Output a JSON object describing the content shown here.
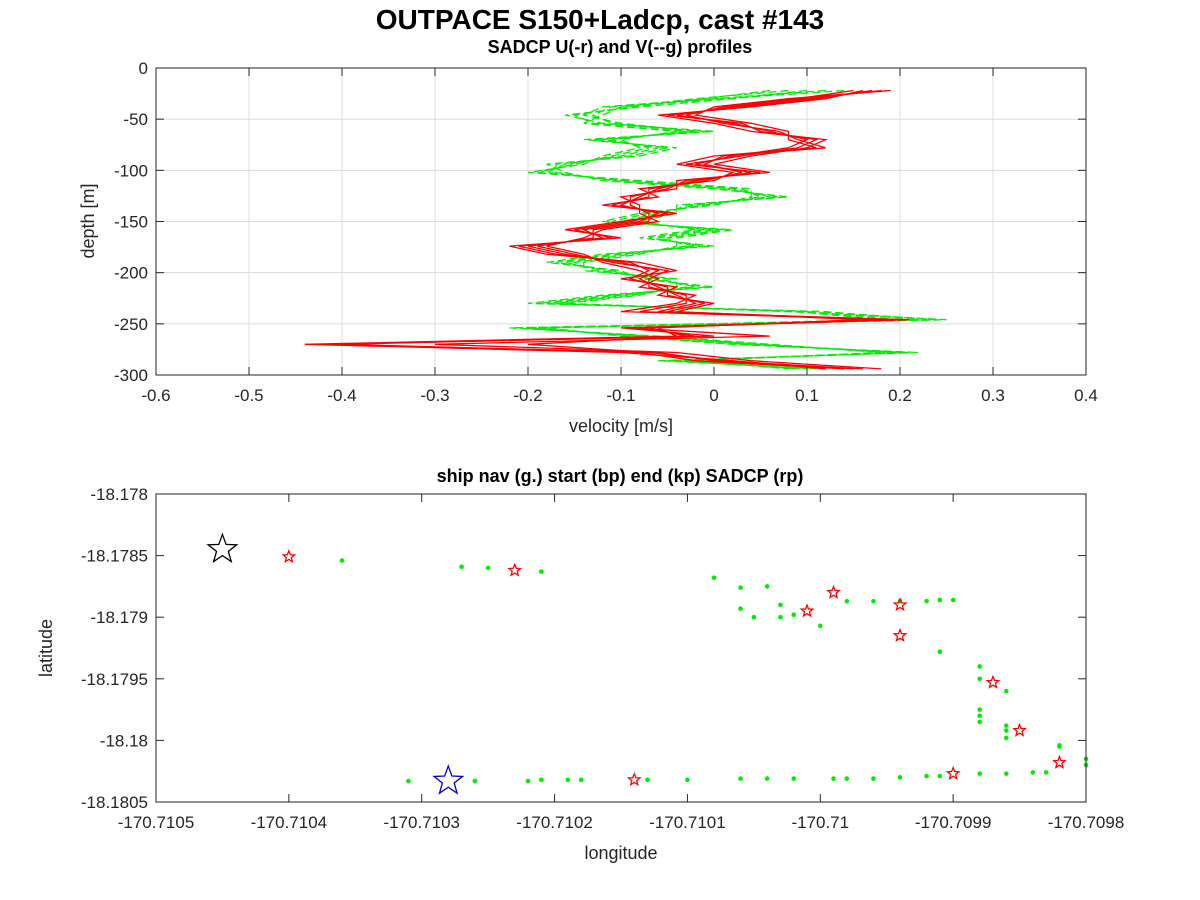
{
  "figure": {
    "title": "OUTPACE S150+Ladcp, cast #143"
  },
  "chart_data": [
    {
      "type": "line",
      "title": "SADCP U(-r) and V(--g) profiles",
      "xlabel": "velocity [m/s]",
      "ylabel": "depth [m]",
      "xlim": [
        -0.6,
        0.4
      ],
      "ylim": [
        -300,
        0
      ],
      "xticks": [
        -0.6,
        -0.5,
        -0.4,
        -0.3,
        -0.2,
        -0.1,
        0,
        0.1,
        0.2,
        0.3,
        0.4
      ],
      "xtick_labels": [
        "-0.6",
        "-0.5",
        "-0.4",
        "-0.3",
        "-0.2",
        "-0.1",
        "0",
        "0.1",
        "0.2",
        "0.3",
        "0.4"
      ],
      "yticks": [
        0,
        -50,
        -100,
        -150,
        -200,
        -250,
        -300
      ],
      "ytick_labels": [
        "0",
        "-50",
        "-100",
        "-150",
        "-200",
        "-250",
        "-300"
      ],
      "grid": true,
      "depth": [
        -22,
        -30,
        -38,
        -46,
        -54,
        -62,
        -70,
        -78,
        -86,
        -94,
        -102,
        -110,
        -118,
        -126,
        -134,
        -142,
        -150,
        -158,
        -166,
        -174,
        -182,
        -190,
        -198,
        -206,
        -214,
        -222,
        -230,
        -238,
        -246,
        -254,
        -262,
        -270,
        -278,
        -286,
        -294
      ],
      "series": [
        {
          "style": "solid",
          "color": "#ff0000",
          "values": [
            0.18,
            0.1,
            0.02,
            -0.04,
            0.02,
            0.06,
            0.1,
            0.08,
            0.02,
            -0.02,
            0.04,
            -0.02,
            -0.06,
            -0.08,
            -0.1,
            -0.06,
            -0.08,
            -0.14,
            -0.12,
            -0.2,
            -0.16,
            -0.1,
            -0.06,
            -0.08,
            -0.06,
            -0.04,
            -0.02,
            -0.06,
            0.18,
            -0.08,
            -0.02,
            -0.4,
            -0.08,
            -0.02,
            0.14
          ]
        },
        {
          "style": "solid",
          "color": "#ff0000",
          "values": [
            0.16,
            0.12,
            0.04,
            -0.06,
            0.0,
            0.04,
            0.12,
            0.1,
            0.04,
            0.0,
            0.06,
            -0.04,
            -0.04,
            -0.1,
            -0.08,
            -0.08,
            -0.06,
            -0.12,
            -0.14,
            -0.18,
            -0.14,
            -0.12,
            -0.08,
            -0.06,
            -0.08,
            -0.02,
            -0.04,
            -0.1,
            0.2,
            -0.1,
            0.0,
            -0.42,
            -0.06,
            0.0,
            0.16
          ]
        },
        {
          "style": "solid",
          "color": "#ff0000",
          "values": [
            0.19,
            0.08,
            0.0,
            -0.02,
            0.04,
            0.08,
            0.08,
            0.11,
            0.0,
            -0.04,
            0.02,
            0.0,
            -0.08,
            -0.06,
            -0.12,
            -0.04,
            -0.1,
            -0.16,
            -0.1,
            -0.22,
            -0.18,
            -0.08,
            -0.04,
            -0.1,
            -0.04,
            -0.06,
            0.0,
            -0.04,
            0.16,
            -0.06,
            -0.04,
            -0.44,
            -0.1,
            0.02,
            0.12
          ]
        },
        {
          "style": "solid",
          "color": "#ff0000",
          "values": [
            0.17,
            0.11,
            0.03,
            -0.05,
            0.03,
            0.05,
            0.11,
            0.09,
            0.03,
            -0.03,
            0.05,
            -0.03,
            -0.05,
            -0.09,
            -0.09,
            -0.07,
            -0.07,
            -0.13,
            -0.13,
            -0.19,
            -0.15,
            -0.11,
            -0.05,
            -0.07,
            -0.07,
            -0.03,
            -0.03,
            -0.08,
            0.21,
            -0.09,
            0.06,
            -0.3,
            -0.04,
            0.04,
            0.18
          ]
        },
        {
          "style": "solid",
          "color": "#ff0000",
          "values": [
            0.15,
            0.09,
            0.01,
            -0.03,
            0.01,
            0.07,
            0.09,
            0.12,
            0.01,
            -0.01,
            0.03,
            -0.01,
            -0.07,
            -0.07,
            -0.11,
            -0.05,
            -0.09,
            -0.15,
            -0.11,
            -0.21,
            -0.17,
            -0.09,
            -0.07,
            -0.09,
            -0.05,
            -0.05,
            -0.01,
            -0.05,
            0.19,
            -0.07,
            -0.03,
            -0.2,
            -0.07,
            0.01,
            0.15
          ]
        },
        {
          "style": "dashed",
          "color": "#00ee00",
          "values": [
            0.12,
            0.0,
            -0.12,
            -0.14,
            -0.1,
            -0.02,
            -0.12,
            -0.06,
            -0.1,
            -0.16,
            -0.18,
            -0.1,
            0.02,
            0.06,
            -0.02,
            -0.06,
            -0.1,
            0.0,
            -0.06,
            -0.02,
            -0.1,
            -0.16,
            -0.12,
            -0.06,
            -0.02,
            -0.1,
            -0.18,
            0.1,
            0.2,
            -0.2,
            -0.08,
            0.04,
            0.2,
            -0.04,
            0.1
          ]
        },
        {
          "style": "dashed",
          "color": "#00ee00",
          "values": [
            0.08,
            -0.02,
            -0.1,
            -0.12,
            -0.14,
            -0.04,
            -0.1,
            -0.08,
            -0.12,
            -0.14,
            -0.2,
            -0.08,
            0.04,
            0.04,
            0.0,
            -0.08,
            -0.12,
            0.02,
            -0.04,
            -0.04,
            -0.08,
            -0.14,
            -0.14,
            -0.04,
            -0.04,
            -0.08,
            -0.16,
            0.08,
            0.25,
            -0.18,
            -0.1,
            0.02,
            0.22,
            -0.06,
            0.12
          ]
        },
        {
          "style": "dashed",
          "color": "#00ee00",
          "values": [
            0.1,
            0.02,
            -0.08,
            -0.16,
            -0.12,
            0.0,
            -0.14,
            -0.04,
            -0.08,
            -0.18,
            -0.16,
            -0.12,
            0.0,
            0.08,
            -0.04,
            -0.04,
            -0.08,
            -0.02,
            -0.08,
            0.0,
            -0.12,
            -0.18,
            -0.1,
            -0.08,
            0.0,
            -0.12,
            -0.2,
            0.12,
            0.22,
            -0.22,
            -0.06,
            0.06,
            0.18,
            -0.02,
            0.08
          ]
        },
        {
          "style": "dashed",
          "color": "#00ee00",
          "values": [
            0.14,
            0.01,
            -0.11,
            -0.13,
            -0.11,
            -0.03,
            -0.11,
            -0.07,
            -0.11,
            -0.15,
            -0.19,
            -0.09,
            0.03,
            0.05,
            -0.01,
            -0.07,
            -0.11,
            0.01,
            -0.05,
            -0.03,
            -0.09,
            -0.15,
            -0.13,
            -0.05,
            -0.03,
            -0.09,
            -0.17,
            0.09,
            0.18,
            -0.19,
            -0.09,
            0.03,
            0.21,
            -0.05,
            0.11
          ]
        },
        {
          "style": "dashed",
          "color": "#00ee00",
          "values": [
            0.06,
            -0.01,
            -0.09,
            -0.15,
            -0.13,
            -0.01,
            -0.13,
            -0.05,
            -0.09,
            -0.17,
            -0.17,
            -0.11,
            0.01,
            0.07,
            -0.03,
            -0.05,
            -0.09,
            -0.01,
            -0.07,
            -0.01,
            -0.11,
            -0.17,
            -0.11,
            -0.07,
            -0.01,
            -0.11,
            -0.19,
            0.11,
            0.24,
            -0.21,
            -0.07,
            0.05,
            0.19,
            -0.03,
            0.09
          ]
        }
      ]
    },
    {
      "type": "scatter",
      "title": "ship nav (g.) start (bp) end (kp) SADCP (rp)",
      "xlabel": "longitude",
      "ylabel": "latitude",
      "xlim": [
        -170.7105,
        -170.7098
      ],
      "ylim": [
        -18.1805,
        -18.178
      ],
      "xticks": [
        -170.7105,
        -170.7104,
        -170.7103,
        -170.7102,
        -170.7101,
        -170.71,
        -170.7099,
        -170.7098
      ],
      "xtick_labels": [
        "-170.7105",
        "-170.7104",
        "-170.7103",
        "-170.7102",
        "-170.7101",
        "-170.71",
        "-170.7099",
        "-170.7098"
      ],
      "yticks": [
        -18.178,
        -18.1785,
        -18.179,
        -18.1795,
        -18.18,
        -18.1805
      ],
      "ytick_labels": [
        "-18.178",
        "-18.1785",
        "-18.179",
        "-18.1795",
        "-18.18",
        "-18.1805"
      ],
      "grid": false,
      "nav_color": "#00ee00",
      "start_color": "#0000cc",
      "end_color": "#000000",
      "sadcp_color": "#ff0000",
      "start": {
        "x": -170.71028,
        "y": -18.18033
      },
      "end": {
        "x": -170.71045,
        "y": -18.17845
      },
      "sadcp": [
        {
          "x": -170.7104,
          "y": -18.17851
        },
        {
          "x": -170.71023,
          "y": -18.17862
        },
        {
          "x": -170.71014,
          "y": -18.18032
        },
        {
          "x": -170.71001,
          "y": -18.17895
        },
        {
          "x": -170.70999,
          "y": -18.1788
        },
        {
          "x": -170.70994,
          "y": -18.1789
        },
        {
          "x": -170.70994,
          "y": -18.17915
        },
        {
          "x": -170.70987,
          "y": -18.17953
        },
        {
          "x": -170.70985,
          "y": -18.17992
        },
        {
          "x": -170.7099,
          "y": -18.18027
        },
        {
          "x": -170.70982,
          "y": -18.18018
        }
      ],
      "nav": [
        {
          "x": -170.71031,
          "y": -18.18033
        },
        {
          "x": -170.71026,
          "y": -18.18033
        },
        {
          "x": -170.71022,
          "y": -18.18033
        },
        {
          "x": -170.71019,
          "y": -18.18032
        },
        {
          "x": -170.71018,
          "y": -18.18032
        },
        {
          "x": -170.71013,
          "y": -18.18032
        },
        {
          "x": -170.7101,
          "y": -18.18032
        },
        {
          "x": -170.71006,
          "y": -18.18031
        },
        {
          "x": -170.71004,
          "y": -18.18031
        },
        {
          "x": -170.71002,
          "y": -18.18031
        },
        {
          "x": -170.70999,
          "y": -18.18031
        },
        {
          "x": -170.70998,
          "y": -18.18031
        },
        {
          "x": -170.70996,
          "y": -18.18031
        },
        {
          "x": -170.70994,
          "y": -18.1803
        },
        {
          "x": -170.70992,
          "y": -18.18029
        },
        {
          "x": -170.70991,
          "y": -18.18029
        },
        {
          "x": -170.70988,
          "y": -18.18027
        },
        {
          "x": -170.70986,
          "y": -18.18027
        },
        {
          "x": -170.70984,
          "y": -18.18026
        },
        {
          "x": -170.70983,
          "y": -18.18026
        },
        {
          "x": -170.7098,
          "y": -18.1802
        },
        {
          "x": -170.7098,
          "y": -18.18015
        },
        {
          "x": -170.70982,
          "y": -18.18005
        },
        {
          "x": -170.70982,
          "y": -18.18004
        },
        {
          "x": -170.70986,
          "y": -18.17998
        },
        {
          "x": -170.70986,
          "y": -18.17992
        },
        {
          "x": -170.70986,
          "y": -18.17988
        },
        {
          "x": -170.70988,
          "y": -18.17985
        },
        {
          "x": -170.70988,
          "y": -18.1798
        },
        {
          "x": -170.70988,
          "y": -18.17975
        },
        {
          "x": -170.70986,
          "y": -18.1796
        },
        {
          "x": -170.70988,
          "y": -18.1795
        },
        {
          "x": -170.70988,
          "y": -18.1794
        },
        {
          "x": -170.70991,
          "y": -18.17928
        },
        {
          "x": -170.70992,
          "y": -18.17887
        },
        {
          "x": -170.70991,
          "y": -18.17886
        },
        {
          "x": -170.7099,
          "y": -18.17886
        },
        {
          "x": -170.70994,
          "y": -18.17887
        },
        {
          "x": -170.70996,
          "y": -18.17887
        },
        {
          "x": -170.70998,
          "y": -18.17887
        },
        {
          "x": -170.71,
          "y": -18.17907
        },
        {
          "x": -170.71002,
          "y": -18.17898
        },
        {
          "x": -170.71003,
          "y": -18.179
        },
        {
          "x": -170.71005,
          "y": -18.179
        },
        {
          "x": -170.71006,
          "y": -18.17893
        },
        {
          "x": -170.71006,
          "y": -18.17876
        },
        {
          "x": -170.71004,
          "y": -18.17875
        },
        {
          "x": -170.71003,
          "y": -18.1789
        },
        {
          "x": -170.71008,
          "y": -18.17868
        },
        {
          "x": -170.71021,
          "y": -18.18032
        },
        {
          "x": -170.71013,
          "y": -18.18032
        },
        {
          "x": -170.71025,
          "y": -18.1786
        },
        {
          "x": -170.71027,
          "y": -18.17859
        },
        {
          "x": -170.71036,
          "y": -18.17854
        },
        {
          "x": -170.71021,
          "y": -18.17863
        }
      ]
    }
  ]
}
